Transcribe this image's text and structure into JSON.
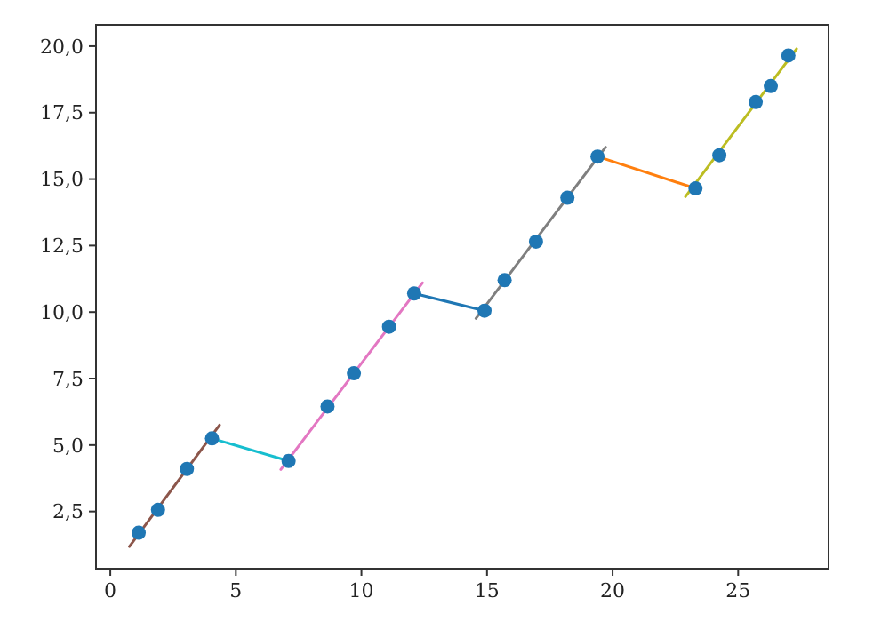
{
  "chart_data": {
    "type": "scatter",
    "xlim": [
      -0.57,
      28.6
    ],
    "ylim": [
      0.35,
      20.8
    ],
    "xticks": [
      0,
      5,
      10,
      15,
      20,
      25
    ],
    "yticks": [
      {
        "value": 2.5,
        "label": "2,5"
      },
      {
        "value": 5,
        "label": "5,0"
      },
      {
        "value": 7.5,
        "label": "7,5"
      },
      {
        "value": 10,
        "label": "10,0"
      },
      {
        "value": 12.5,
        "label": "12,5"
      },
      {
        "value": 15,
        "label": "15,0"
      },
      {
        "value": 17.5,
        "label": "17,5"
      },
      {
        "value": 20,
        "label": "20,0"
      }
    ],
    "grid": false,
    "series": [
      {
        "type": "line",
        "color": "#8c564b",
        "x": [
          0.76,
          4.35
        ],
        "values": [
          1.18,
          5.75
        ]
      },
      {
        "type": "line",
        "color": "#17becf",
        "x": [
          4.05,
          7.1
        ],
        "values": [
          5.25,
          4.4
        ]
      },
      {
        "type": "line",
        "color": "#e377c2",
        "x": [
          6.79,
          12.43
        ],
        "values": [
          4.08,
          11.1
        ]
      },
      {
        "type": "line",
        "color": "#1f77b4",
        "x": [
          12.1,
          14.9
        ],
        "values": [
          10.7,
          10.05
        ]
      },
      {
        "type": "line",
        "color": "#7f7f7f",
        "x": [
          14.56,
          19.72
        ],
        "values": [
          9.76,
          16.2
        ]
      },
      {
        "type": "line",
        "color": "#ff7f0e",
        "x": [
          19.4,
          23.3
        ],
        "values": [
          15.85,
          14.65
        ]
      },
      {
        "type": "line",
        "color": "#bcbd22",
        "x": [
          22.9,
          27.33
        ],
        "values": [
          14.34,
          19.9
        ]
      },
      {
        "color": "#1f77b4",
        "marker": "circle",
        "x": [
          1.13,
          1.9,
          3.05,
          4.05,
          7.1,
          8.65,
          9.7,
          11.1,
          12.1,
          14.9,
          15.7,
          16.95,
          18.2,
          19.4,
          23.3,
          24.25,
          25.7,
          26.3,
          27.0
        ],
        "values": [
          1.7,
          2.56,
          4.1,
          5.25,
          4.4,
          6.45,
          7.7,
          9.45,
          10.7,
          10.05,
          11.2,
          12.65,
          14.3,
          15.85,
          14.65,
          15.9,
          17.9,
          18.5,
          19.65
        ]
      }
    ]
  }
}
